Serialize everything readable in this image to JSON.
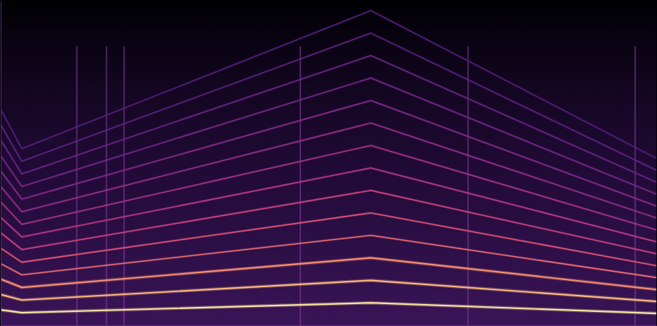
{
  "chart_data": {
    "type": "line",
    "tick_labels": false,
    "grid": false,
    "marker": "none",
    "x": [
      0,
      0.3,
      5.25,
      9.3
    ],
    "xlim": [
      0,
      9.3
    ],
    "xticks": [],
    "ylim": [
      0,
      8000
    ],
    "yticks": [],
    "transients": [
      1.08,
      1.5,
      1.75,
      4.25,
      6.63,
      9.0
    ],
    "series": [
      {
        "color": "#fde3a0",
        "values": [
          380,
          311,
          554,
          294
        ]
      },
      {
        "color": "#fcb97d",
        "values": [
          760,
          622,
          1108,
          588
        ]
      },
      {
        "color": "#f9906e",
        "values": [
          1140,
          933,
          1662,
          882
        ]
      },
      {
        "color": "#ef6d73",
        "values": [
          1520,
          1244,
          2216,
          1176
        ]
      },
      {
        "color": "#e2557a",
        "values": [
          1900,
          1555,
          2770,
          1470
        ]
      },
      {
        "color": "#cf4480",
        "values": [
          2280,
          1866,
          3324,
          1764
        ]
      },
      {
        "color": "#bb3a86",
        "values": [
          2660,
          2177,
          3878,
          2058
        ]
      },
      {
        "color": "#a8348a",
        "values": [
          3040,
          2488,
          4432,
          2352
        ]
      },
      {
        "color": "#962f8c",
        "values": [
          3420,
          2799,
          4986,
          2646
        ]
      },
      {
        "color": "#852b8c",
        "values": [
          3800,
          3110,
          5540,
          2940
        ]
      },
      {
        "color": "#76288a",
        "values": [
          4180,
          3421,
          6094,
          3234
        ]
      },
      {
        "color": "#6a2587",
        "values": [
          4560,
          3732,
          6648,
          3528
        ]
      },
      {
        "color": "#5e2283",
        "values": [
          4940,
          4043,
          7202,
          3822
        ]
      },
      {
        "color": "#531f7d",
        "values": [
          5320,
          4354,
          7756,
          4116
        ]
      }
    ]
  }
}
